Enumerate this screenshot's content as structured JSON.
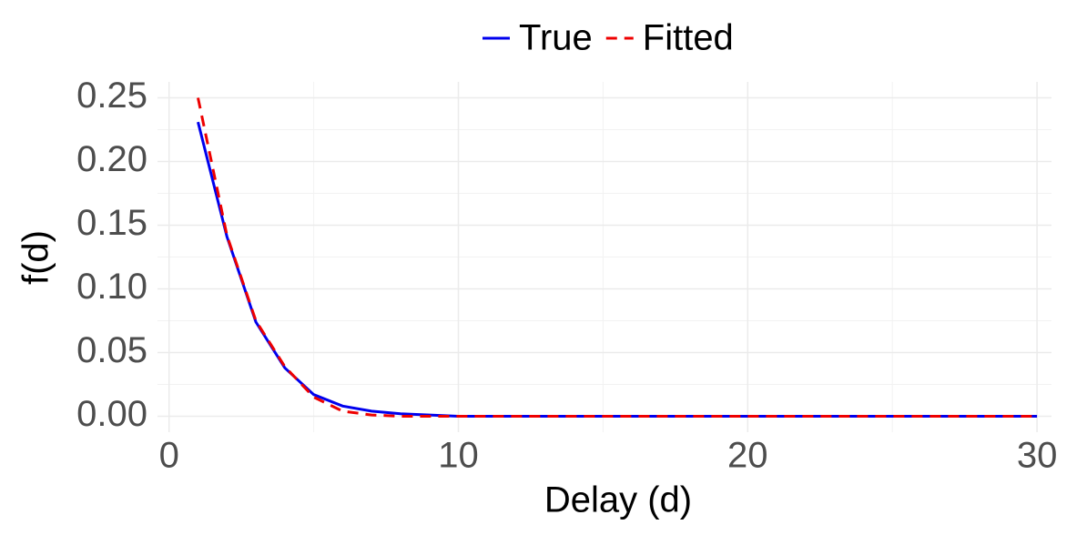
{
  "chart_data": {
    "type": "line",
    "xlabel": "Delay (d)",
    "ylabel": "f(d)",
    "x": [
      1,
      2,
      3,
      4,
      5,
      6,
      7,
      8,
      9,
      10,
      11,
      12,
      13,
      14,
      15,
      16,
      17,
      18,
      19,
      20,
      21,
      22,
      23,
      24,
      25,
      26,
      27,
      28,
      29,
      30
    ],
    "series": [
      {
        "name": "True",
        "color": "#0000ee",
        "dash": "solid",
        "values": [
          0.231,
          0.141,
          0.074,
          0.038,
          0.017,
          0.008,
          0.004,
          0.002,
          0.001,
          0,
          0,
          0,
          0,
          0,
          0,
          0,
          0,
          0,
          0,
          0,
          0,
          0,
          0,
          0,
          0,
          0,
          0,
          0,
          0,
          0
        ]
      },
      {
        "name": "Fitted",
        "color": "#ee0000",
        "dash": "dashed",
        "values": [
          0.25,
          0.142,
          0.075,
          0.039,
          0.015,
          0.004,
          0.001,
          0,
          0,
          0,
          0,
          0,
          0,
          0,
          0,
          0,
          0,
          0,
          0,
          0,
          0,
          0,
          0,
          0,
          0,
          0,
          0,
          0,
          0,
          0
        ]
      }
    ],
    "xlim": [
      -0.4,
      30.5
    ],
    "ylim": [
      -0.0125,
      0.2625
    ],
    "xticks": [
      0,
      10,
      20,
      30
    ],
    "yticks": [
      {
        "value": 0,
        "label": "0.00"
      },
      {
        "value": 0.05,
        "label": "0.05"
      },
      {
        "value": 0.1,
        "label": "0.10"
      },
      {
        "value": 0.15,
        "label": "0.15"
      },
      {
        "value": 0.2,
        "label": "0.20"
      },
      {
        "value": 0.25,
        "label": "0.25"
      }
    ],
    "xminor": [
      5,
      15,
      25
    ],
    "yminor": [
      0.025,
      0.075,
      0.125,
      0.175,
      0.225
    ],
    "grid": true,
    "legend": "top"
  }
}
